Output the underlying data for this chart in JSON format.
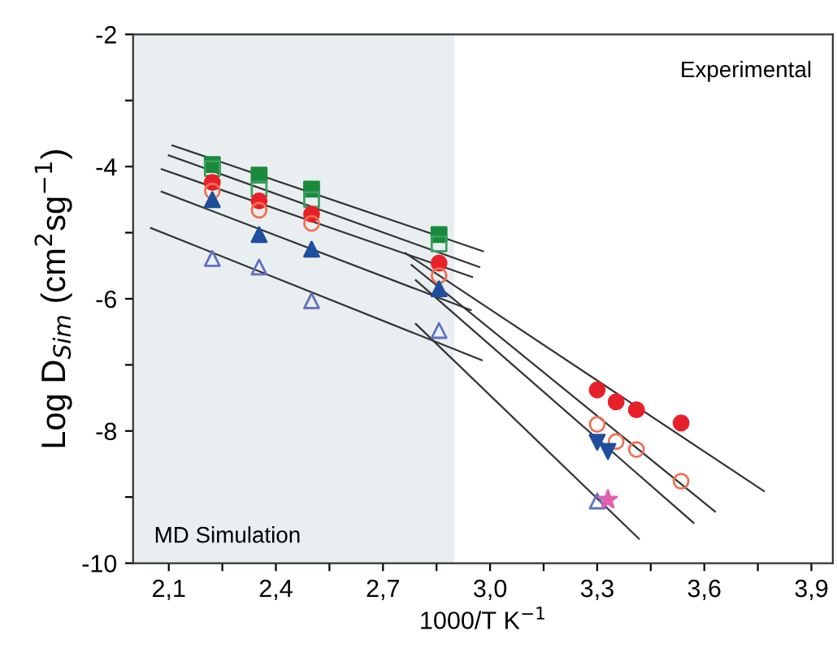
{
  "chart_data": {
    "type": "scatter",
    "xlabel": "1000/T K$^{−1}$",
    "ylabel": "Log D$_{Sim}$ (cm$^{2}$sg$^{−1}$)",
    "xlim": [
      2.0,
      3.96
    ],
    "ylim": [
      -10,
      -2
    ],
    "xticks": [
      {
        "value": 2.1,
        "label": "2,1"
      },
      {
        "value": 2.25,
        "label": null
      },
      {
        "value": 2.4,
        "label": "2,4"
      },
      {
        "value": 2.55,
        "label": null
      },
      {
        "value": 2.7,
        "label": "2,7"
      },
      {
        "value": 2.85,
        "label": null
      },
      {
        "value": 3.0,
        "label": "3,0"
      },
      {
        "value": 3.15,
        "label": null
      },
      {
        "value": 3.3,
        "label": "3,3"
      },
      {
        "value": 3.45,
        "label": null
      },
      {
        "value": 3.6,
        "label": "3,6"
      },
      {
        "value": 3.75,
        "label": null
      },
      {
        "value": 3.9,
        "label": "3,9"
      }
    ],
    "yticks": [
      -10,
      {
        "value": -9,
        "label": null
      },
      -8,
      {
        "value": -7,
        "label": null
      },
      -6,
      {
        "value": -5,
        "label": null
      },
      -4,
      {
        "value": -3,
        "label": null
      },
      -2
    ],
    "grid": false,
    "bands": [
      {
        "axis": "x",
        "from": 2.0,
        "to": 2.9,
        "color": "#e9eef0"
      }
    ],
    "annotations": [
      "Experimental",
      "MD Simulation"
    ],
    "series": [
      {
        "type": "line",
        "color": "#333333",
        "x": [
          2.11,
          2.98
        ],
        "values": [
          -3.68,
          -5.28
        ]
      },
      {
        "type": "line",
        "color": "#333333",
        "x": [
          2.1,
          2.97
        ],
        "values": [
          -3.83,
          -5.52
        ]
      },
      {
        "type": "line",
        "color": "#333333",
        "x": [
          2.08,
          2.95
        ],
        "values": [
          -4.04,
          -5.67
        ]
      },
      {
        "type": "line",
        "color": "#333333",
        "x": [
          2.08,
          2.946
        ],
        "values": [
          -4.38,
          -6.17
        ]
      },
      {
        "type": "line",
        "color": "#333333",
        "x": [
          2.05,
          2.977
        ],
        "values": [
          -4.93,
          -6.93
        ]
      },
      {
        "type": "line",
        "color": "#333333",
        "x": [
          2.763,
          3.767
        ],
        "values": [
          -5.31,
          -8.91
        ]
      },
      {
        "type": "line",
        "color": "#333333",
        "x": [
          2.78,
          3.63
        ],
        "values": [
          -5.49,
          -9.22
        ]
      },
      {
        "type": "line",
        "color": "#333333",
        "x": [
          2.792,
          3.57
        ],
        "values": [
          -5.72,
          -9.39
        ]
      },
      {
        "type": "line",
        "color": "#333333",
        "x": [
          2.792,
          3.417
        ],
        "values": [
          -6.38,
          -9.63
        ]
      },
      {
        "marker": "square",
        "color": "#1a8a3c",
        "x": [
          2.222,
          2.353,
          2.5,
          2.857
        ],
        "values": [
          -3.97,
          -4.13,
          -4.34,
          -5.03
        ]
      },
      {
        "marker": "square",
        "color": "#3aa060",
        "x": [
          2.222,
          2.353,
          2.5,
          2.857
        ],
        "values": [
          -4.03,
          -4.34,
          -4.5,
          -5.17
        ]
      },
      {
        "marker": "circle",
        "color": "#e8202a",
        "x": [
          2.222,
          2.353,
          2.5,
          2.857,
          3.3,
          3.353,
          3.41,
          3.535
        ],
        "values": [
          -4.24,
          -4.52,
          -4.72,
          -5.46,
          -7.38,
          -7.56,
          -7.68,
          -7.88
        ]
      },
      {
        "marker": "circle",
        "color": "#f07050",
        "x": [
          2.222,
          2.353,
          2.5,
          2.857,
          3.3,
          3.353,
          3.41,
          3.535
        ],
        "values": [
          -4.37,
          -4.66,
          -4.86,
          -5.65,
          -7.9,
          -8.16,
          -8.28,
          -8.76
        ]
      },
      {
        "marker": "triangle",
        "color": "#1f4e9c",
        "x": [
          2.222,
          2.353,
          2.5,
          2.857
        ],
        "values": [
          -4.5,
          -5.03,
          -5.25,
          -5.85
        ]
      },
      {
        "marker": "triangle",
        "color": "#1f4e9c",
        "x": [
          3.3,
          3.33
        ],
        "values": [
          -8.17,
          -8.31
        ]
      },
      {
        "marker": "triangle",
        "color": "#6070c0",
        "x": [
          2.222,
          2.353,
          2.5,
          2.857,
          3.3
        ],
        "values": [
          -5.39,
          -5.52,
          -6.03,
          -6.48,
          -9.06
        ]
      },
      {
        "marker": "star",
        "color": "#e060b0",
        "x": [
          3.33
        ],
        "values": [
          -9.04
        ]
      }
    ]
  }
}
